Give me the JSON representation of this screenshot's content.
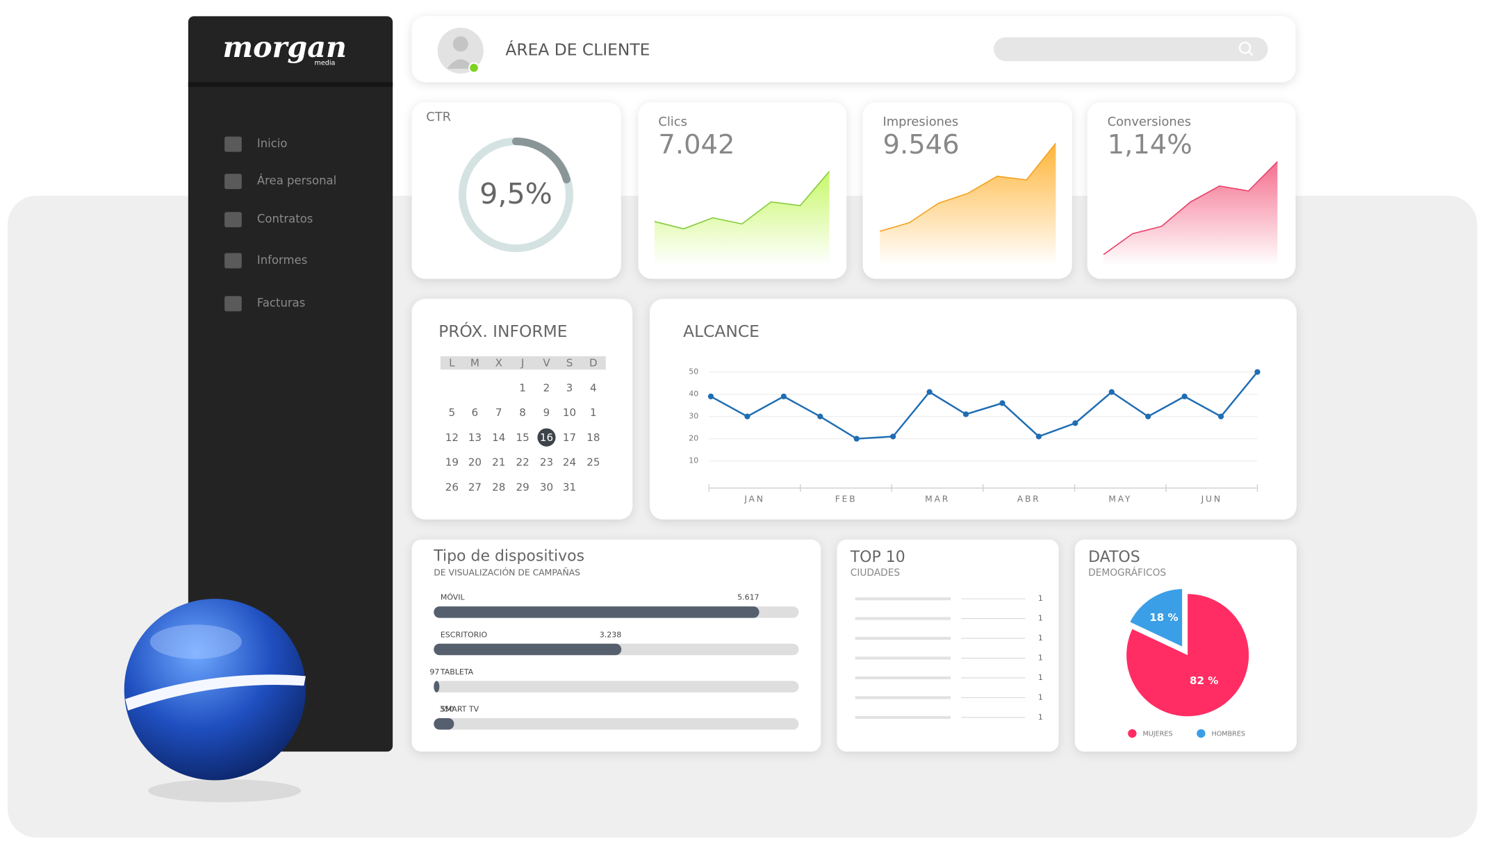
{
  "sidebar": {
    "logo": "morgan",
    "logo_sub": "media",
    "menu": [
      "Inicio",
      "Área personal",
      "Contratos",
      "Informes",
      "Facturas"
    ]
  },
  "header": {
    "title": "ÁREA DE CLIENTE"
  },
  "kpis": [
    {
      "label": "CTR",
      "value": "9,5%"
    },
    {
      "label": "Clics",
      "value": "7.042"
    },
    {
      "label": "Impresiones",
      "value": "9.546"
    },
    {
      "label": "Conversiones",
      "value": "1,14%"
    }
  ],
  "calendar": {
    "title": "PRÓX. INFORME",
    "weekdays": [
      "L",
      "M",
      "X",
      "J",
      "V",
      "S",
      "D"
    ],
    "weeks": [
      [
        null,
        null,
        null,
        "1",
        "2",
        "3",
        "4"
      ],
      [
        "5",
        "6",
        "7",
        "8",
        "9",
        "10",
        "1"
      ],
      [
        "12",
        "13",
        "14",
        "15",
        "16",
        "17",
        "18"
      ],
      [
        "19",
        "20",
        "21",
        "22",
        "23",
        "24",
        "25"
      ],
      [
        "26",
        "27",
        "28",
        "29",
        "30",
        "31",
        null
      ]
    ],
    "selected": "16"
  },
  "top10": {
    "title": "TOP 10",
    "subtitle": "CIUDADES",
    "values": [
      1,
      1,
      1,
      1,
      1,
      1,
      1
    ]
  },
  "chart_data": [
    {
      "type": "area",
      "values": [
        36,
        30,
        39,
        34,
        52,
        49,
        77
      ],
      "ylim": [
        0,
        100
      ],
      "color": "#86cc3c",
      "fill": "#c8f86a"
    },
    {
      "type": "area",
      "values": [
        28,
        35,
        51,
        59,
        73,
        70,
        100
      ],
      "ylim": [
        0,
        100
      ],
      "color": "#f5a11f",
      "fill": "#ffb53a"
    },
    {
      "type": "area",
      "values": [
        9,
        26,
        32,
        52,
        65,
        61,
        85
      ],
      "ylim": [
        0,
        100
      ],
      "color": "#e8436a",
      "fill": "#f5708f"
    },
    {
      "type": "line",
      "title": "ALCANCE",
      "x_labels": [
        "JAN",
        "FEB",
        "MAR",
        "ABR",
        "MAY",
        "JUN"
      ],
      "values": [
        39,
        30,
        39,
        30,
        20,
        21,
        41,
        31,
        36,
        21,
        27,
        41,
        30,
        39,
        30,
        50
      ],
      "ylim": [
        0,
        50
      ],
      "yticks": [
        10,
        20,
        30,
        40,
        50
      ],
      "grid": true,
      "color": "#1f6db3"
    },
    {
      "type": "hbar",
      "title": "Tipo de dispositivos",
      "subtitle": "DE VISUALIZACIÓN DE CAMPAÑAS",
      "categories": [
        "MÓVIL",
        "ESCRITORIO",
        "TABLETA",
        "SMART TV"
      ],
      "values": [
        5617,
        3238,
        97,
        350
      ],
      "value_labels": [
        "5.617",
        "3.238",
        "97",
        "350"
      ],
      "xlim": [
        0,
        6300
      ],
      "color": "#555f6d"
    },
    {
      "type": "pie",
      "title": "DATOS",
      "subtitle": "DEMOGRÁFICOS",
      "categories": [
        "MUJERES",
        "HOMBRES"
      ],
      "values": [
        82,
        18
      ],
      "value_labels": [
        "82 %",
        "18 %"
      ],
      "colors": [
        "#ff2d63",
        "#3a9fe6"
      ]
    }
  ]
}
